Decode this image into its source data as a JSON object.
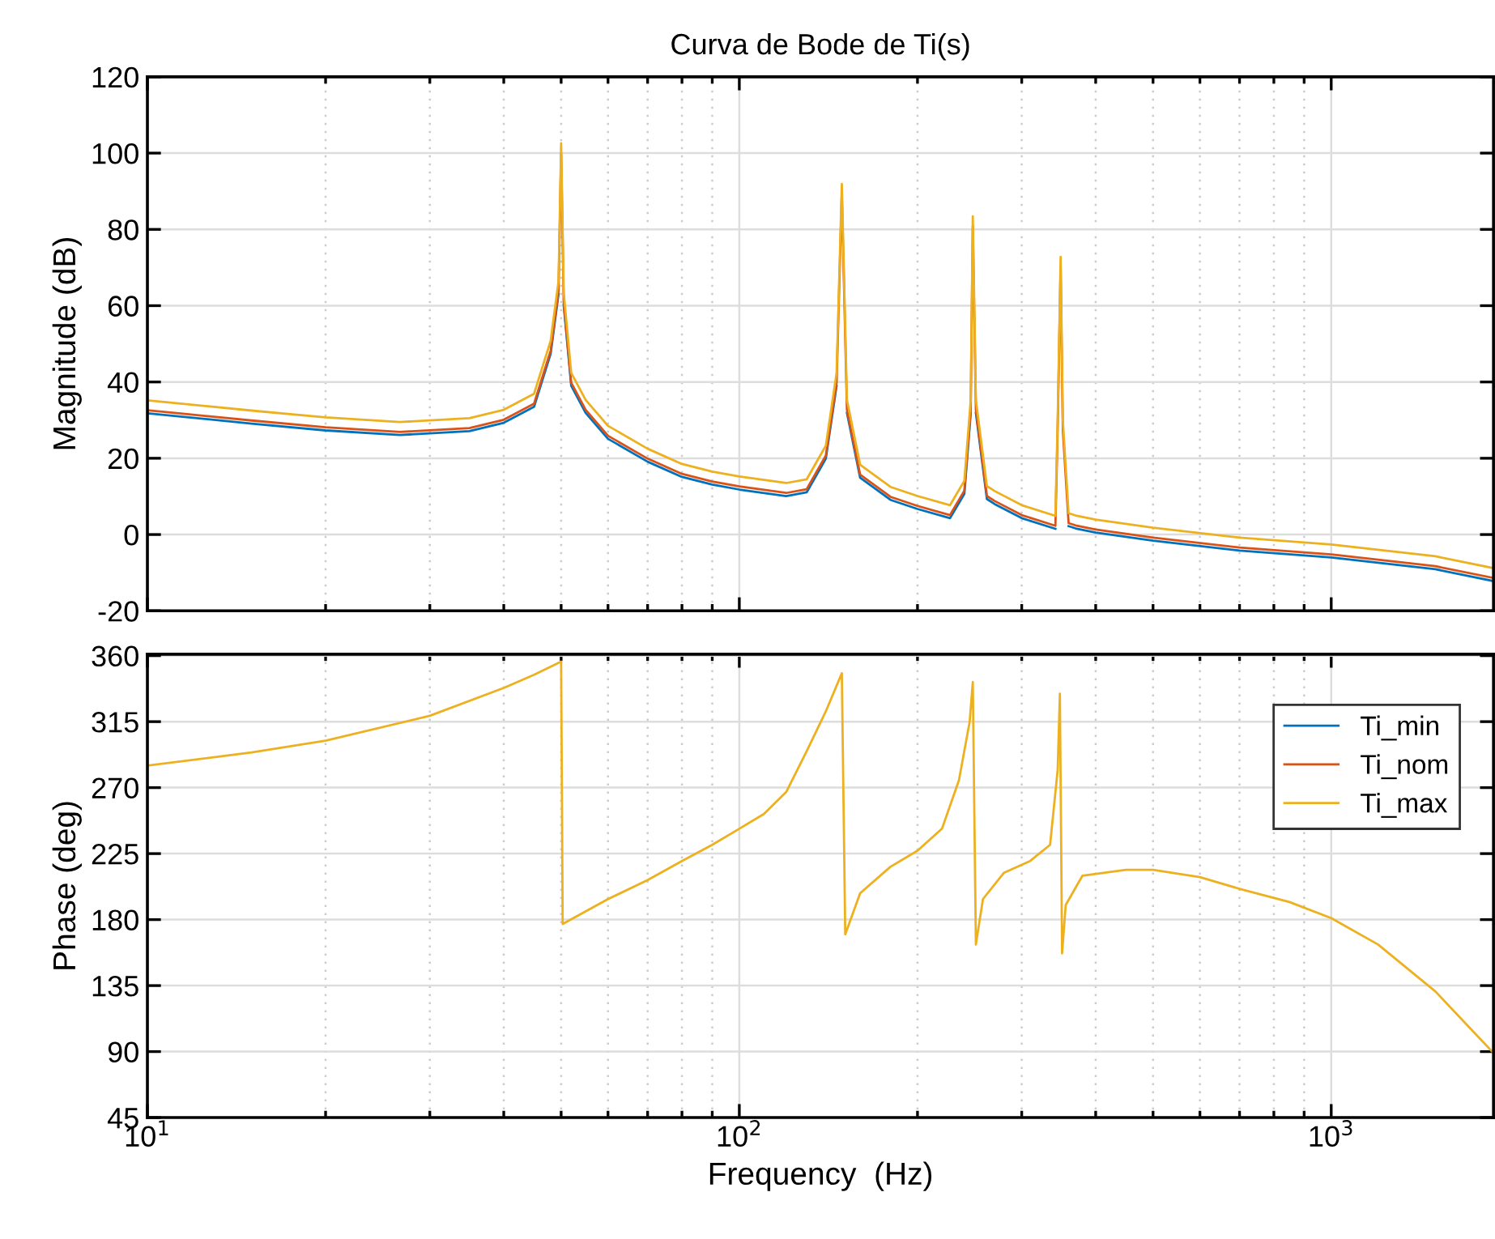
{
  "chart_data": [
    {
      "type": "line",
      "title": "Curva de Bode de Ti(s)",
      "ylabel": "Magnitude (dB)",
      "log": "x",
      "grid": true,
      "tick_labels": "y",
      "xlim": [
        10,
        1880
      ],
      "xticks": [
        {
          "value": 10,
          "label": null
        },
        {
          "value": 100,
          "label": null
        },
        {
          "value": 1000,
          "label": null
        }
      ],
      "ylim": [
        -20,
        120
      ],
      "yticks": [
        -20,
        0,
        20,
        40,
        60,
        80,
        100,
        120
      ],
      "x": [
        10,
        15,
        20,
        26.7,
        35,
        40,
        45,
        48,
        49.5,
        50,
        50.5,
        52,
        55,
        60,
        70,
        80,
        90,
        100,
        120,
        130,
        140,
        146,
        149,
        152,
        160,
        180,
        200,
        227,
        240,
        246,
        248,
        251,
        262,
        270,
        300,
        342,
        345,
        349,
        352,
        360,
        370,
        400,
        500,
        700,
        1000,
        1500,
        1880
      ],
      "series": [
        {
          "color": "#0072bd",
          "values": [
            31.8,
            29.1,
            27.3,
            26.1,
            27.1,
            29.3,
            33.5,
            47.4,
            63.1,
            null,
            60.2,
            39.0,
            31.9,
            25.1,
            19.1,
            15.1,
            13.1,
            11.8,
            10.1,
            11.1,
            19.9,
            39.0,
            null,
            31.9,
            14.9,
            9.1,
            6.7,
            4.3,
            10.7,
            31.9,
            null,
            31.9,
            9.3,
            8.0,
            4.3,
            1.5,
            null,
            null,
            null,
            2.2,
            1.6,
            0.5,
            -1.6,
            -4.2,
            -6.0,
            -9.1,
            -12.2
          ]
        },
        {
          "color": "#d95319",
          "values": [
            32.6,
            29.9,
            28.1,
            26.9,
            27.9,
            30.1,
            34.3,
            48.2,
            63.9,
            100.0,
            61.0,
            39.8,
            32.7,
            25.9,
            19.9,
            15.9,
            13.9,
            12.6,
            10.9,
            11.9,
            20.7,
            39.8,
            89.3,
            32.7,
            15.7,
            9.9,
            7.5,
            5.1,
            11.5,
            32.7,
            80.8,
            32.7,
            10.1,
            8.8,
            5.1,
            2.3,
            27.4,
            70.2,
            27.4,
            3.0,
            2.4,
            1.3,
            -0.8,
            -3.4,
            -5.2,
            -8.3,
            -11.4
          ]
        },
        {
          "color": "#edb120",
          "values": [
            35.2,
            32.5,
            30.7,
            29.5,
            30.5,
            32.7,
            36.9,
            50.8,
            66.5,
            102.6,
            63.6,
            42.4,
            35.3,
            28.5,
            22.5,
            18.5,
            16.5,
            15.2,
            13.5,
            14.5,
            23.3,
            42.4,
            91.9,
            35.3,
            18.3,
            12.5,
            10.1,
            7.7,
            14.1,
            35.3,
            83.4,
            35.3,
            12.7,
            11.4,
            7.7,
            4.9,
            30.0,
            72.8,
            30.0,
            5.6,
            5.0,
            3.9,
            1.8,
            -0.8,
            -2.6,
            -5.7,
            -8.8
          ]
        }
      ]
    },
    {
      "type": "line",
      "xlabel": "Frequency  (Hz)",
      "ylabel": "Phase (deg)",
      "log": "x",
      "grid": true,
      "legend": "top right",
      "xlim": [
        10,
        1880
      ],
      "xticks": [
        {
          "value": 10,
          "label": "10$^{1}$"
        },
        {
          "value": 100,
          "label": "10$^{2}$"
        },
        {
          "value": 1000,
          "label": "10$^{3}$"
        }
      ],
      "ylim": [
        45,
        361
      ],
      "yticks": [
        45,
        90,
        135,
        180,
        225,
        270,
        315,
        360
      ],
      "x": [
        10,
        15,
        20,
        30,
        40,
        45,
        50,
        50.3,
        60,
        70,
        80,
        90,
        100,
        110,
        120,
        130,
        140,
        149,
        151,
        160,
        180,
        200,
        220,
        235,
        245,
        248,
        251,
        258,
        280,
        310,
        335,
        345,
        348,
        351,
        356,
        380,
        450,
        500,
        600,
        700,
        850,
        1000,
        1200,
        1500,
        1880
      ],
      "series": [
        {
          "name": "Ti_min",
          "color": "#0072bd",
          "values": [
            null,
            null,
            null,
            null,
            null,
            null,
            null,
            null,
            null,
            null,
            null,
            null,
            null,
            null,
            null,
            null,
            null,
            null,
            null,
            null,
            null,
            null,
            null,
            null,
            null,
            null,
            null,
            null,
            null,
            null,
            null,
            null,
            null,
            null,
            null,
            null,
            null,
            null,
            null,
            null,
            null,
            null,
            null,
            null,
            null
          ]
        },
        {
          "name": "Ti_nom",
          "color": "#d95319",
          "values": [
            null,
            null,
            null,
            null,
            null,
            null,
            null,
            null,
            null,
            null,
            null,
            null,
            null,
            null,
            null,
            null,
            null,
            null,
            null,
            null,
            null,
            null,
            null,
            null,
            null,
            null,
            null,
            null,
            null,
            null,
            null,
            null,
            null,
            null,
            null,
            null,
            null,
            null,
            null,
            null,
            null,
            null,
            null,
            null,
            null
          ]
        },
        {
          "name": "Ti_max",
          "color": "#edb120",
          "values": [
            285,
            294,
            302,
            319,
            338,
            347,
            356,
            177,
            194,
            207,
            220,
            231,
            242,
            252,
            267,
            295,
            322,
            348,
            170,
            198,
            216,
            227,
            242,
            275,
            315,
            342,
            163,
            194,
            212,
            220,
            231,
            282,
            334,
            157,
            190,
            210,
            214,
            214,
            209,
            201,
            192,
            181,
            163,
            131,
            89
          ]
        }
      ]
    }
  ]
}
